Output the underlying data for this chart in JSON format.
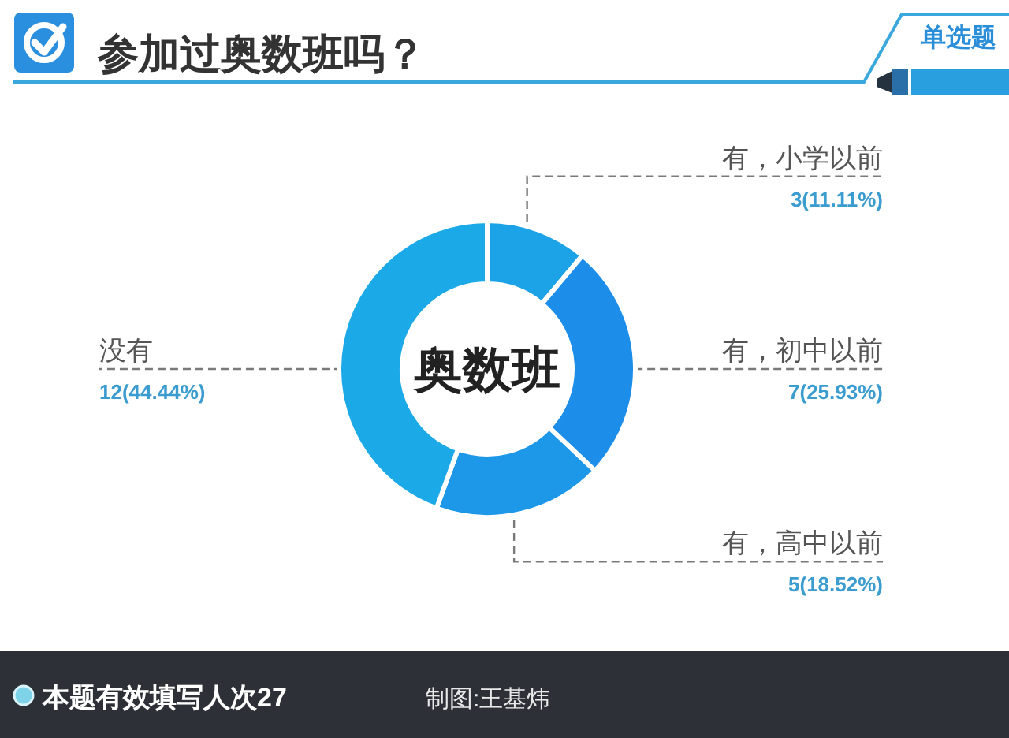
{
  "chart_data": {
    "type": "donut",
    "title": "参加过奥数班吗？",
    "categories": [
      "有，小学以前",
      "有，初中以前",
      "有，高中以前",
      "没有"
    ],
    "values": [
      3,
      7,
      5,
      12
    ],
    "colors": [
      "#1ca2e6",
      "#1c8ee9",
      "#1d98e9",
      "#1ba9e7"
    ],
    "value_labels": [
      "3(11.11%)",
      "7(25.93%)",
      "5(18.52%)",
      "12(44.44%)"
    ],
    "annotations": [
      "奥数班",
      "单选题",
      "本题有效填写人次27",
      "制图:王基炜"
    ]
  }
}
